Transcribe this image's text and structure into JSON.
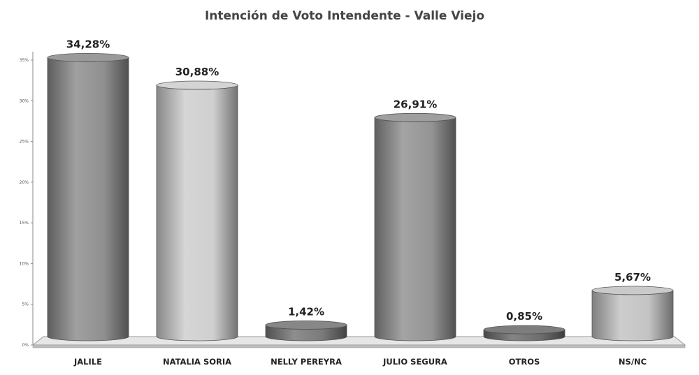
{
  "chart_data": {
    "type": "bar",
    "title": "Intención de Voto Intendente - Valle Viejo",
    "xlabel": "",
    "ylabel": "",
    "ylim": [
      0,
      35
    ],
    "yticks": [
      "0%",
      "5%",
      "10%",
      "15%",
      "20%",
      "25%",
      "30%",
      "35%"
    ],
    "categories": [
      "JALILE",
      "NATALIA SORIA",
      "NELLY PEREYRA",
      "JULIO SEGURA",
      "OTROS",
      "NS/NC"
    ],
    "values": [
      34.28,
      30.88,
      1.42,
      26.91,
      0.85,
      5.67
    ],
    "data_labels": [
      "34,28%",
      "30,88%",
      "1,42%",
      "26,91%",
      "0,85%",
      "5,67%"
    ],
    "bar_colors": [
      "#8f8f8f",
      "#cfcfcf",
      "#7a7a7a",
      "#949494",
      "#6e6e6e",
      "#c4c4c4"
    ],
    "grid": false,
    "legend": "none",
    "style": "3d-cylinder"
  }
}
